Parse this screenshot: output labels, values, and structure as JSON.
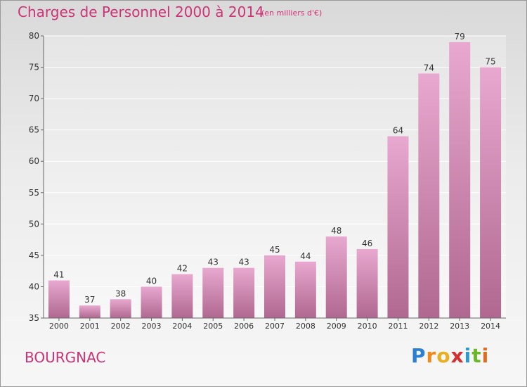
{
  "title": "Charges de Personnel 2000 à 2014",
  "subtitle": "(en milliers d'€)",
  "commune": "BOURGNAC",
  "brand": {
    "letters": [
      "P",
      "r",
      "o",
      "x",
      "i",
      "t",
      "i"
    ],
    "colors": [
      "#2a7fd4",
      "#f08a1c",
      "#e8b020",
      "#d43030",
      "#2a9ad4",
      "#6ab82a",
      "#e06a20"
    ]
  },
  "colors": {
    "accent": "#cc3377",
    "bar_light": "#e8a8cf",
    "bar_dark": "#b06890"
  },
  "chart_data": {
    "type": "bar",
    "categories": [
      "2000",
      "2001",
      "2002",
      "2003",
      "2004",
      "2005",
      "2006",
      "2007",
      "2008",
      "2009",
      "2010",
      "2011",
      "2012",
      "2013",
      "2014"
    ],
    "values": [
      41,
      37,
      38,
      40,
      42,
      43,
      43,
      45,
      44,
      48,
      46,
      64,
      74,
      79,
      75
    ],
    "ylim": [
      35,
      80
    ],
    "yticks": [
      35,
      40,
      45,
      50,
      55,
      60,
      65,
      70,
      75,
      80
    ],
    "grid": true,
    "xlabel": "",
    "ylabel": ""
  }
}
